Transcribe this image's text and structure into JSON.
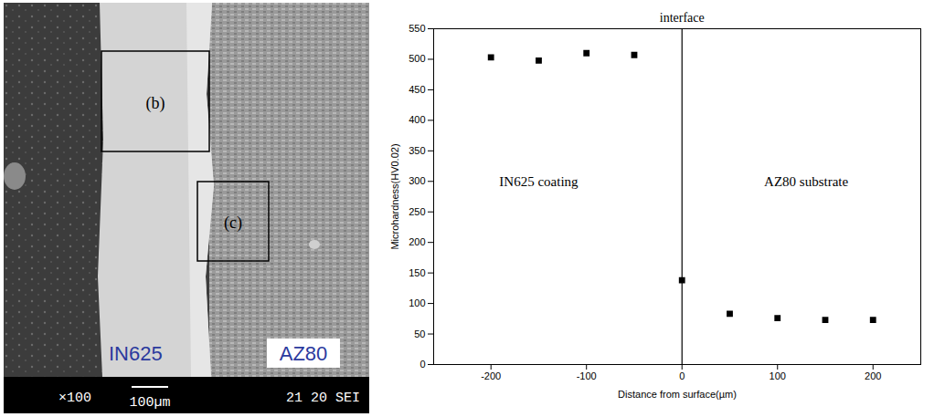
{
  "micrograph": {
    "box_labels": [
      "(b)",
      "(c)"
    ],
    "layer_labels": [
      "IN625",
      "AZ80"
    ],
    "info_bar": [
      "×100",
      "100µm",
      "21 20 SEI"
    ]
  },
  "chart_data": {
    "type": "scatter",
    "x_label": "Distance from surface(µm)",
    "y_label": "Microhardness(HV0.02)",
    "x": [
      -200,
      -150,
      -100,
      -50,
      0,
      50,
      100,
      150,
      200
    ],
    "values": [
      503,
      498,
      510,
      507,
      138,
      83,
      76,
      73,
      73
    ],
    "color": "#000000",
    "marker": "square",
    "xlim": [
      -260,
      250
    ],
    "xticks": [
      -200,
      -100,
      0,
      100,
      200
    ],
    "ylim": [
      0,
      550
    ],
    "yticks": [
      0,
      50,
      100,
      150,
      200,
      250,
      300,
      350,
      400,
      450,
      500,
      550
    ],
    "vlines": [
      {
        "x": 0,
        "label": "interface"
      }
    ],
    "annotations": [
      {
        "text": "IN625 coating",
        "x": -150,
        "y": 300
      },
      {
        "text": "AZ80 substrate",
        "x": 130,
        "y": 300
      }
    ],
    "grid": false
  }
}
